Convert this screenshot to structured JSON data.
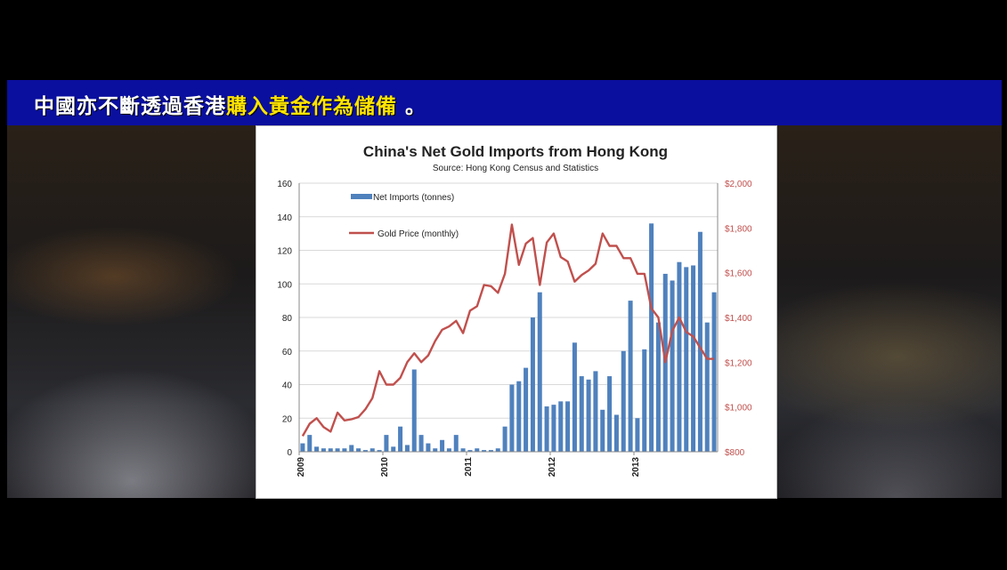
{
  "banner": {
    "segments": [
      {
        "text": "中國",
        "color": "w"
      },
      {
        "text": "亦不斷透過香港",
        "color": "w"
      },
      {
        "text": "購入黃金作為儲備",
        "color": "y"
      },
      {
        "text": " 。",
        "color": "w"
      }
    ]
  },
  "colors": {
    "bar": "#4f81bd",
    "line": "#c0504d",
    "banner": "#0a0f9e",
    "banner_yellow": "#ffe400"
  },
  "chart_data": {
    "type": "bar",
    "title": "China's Net Gold Imports from Hong Kong",
    "subtitle": "Source: Hong Kong Census and Statistics",
    "x_tick_labels": [
      "2009",
      "2010",
      "2011",
      "2012",
      "2013"
    ],
    "y_left": {
      "min": 0,
      "max": 160,
      "step": 20,
      "ticks": [
        "0",
        "20",
        "40",
        "60",
        "80",
        "100",
        "120",
        "140",
        "160"
      ]
    },
    "y_right": {
      "min": 800,
      "max": 2000,
      "step": 200,
      "ticks": [
        "$800",
        "$1,000",
        "$1,200",
        "$1,400",
        "$1,600",
        "$1,800",
        "$2,000"
      ]
    },
    "legend_placement": "top-left",
    "series": [
      {
        "name": "Net Imports (tonnes)",
        "type": "bar",
        "axis": "left",
        "values": [
          5,
          10,
          3,
          2,
          2,
          2,
          2,
          4,
          2,
          1,
          2,
          1,
          10,
          3,
          15,
          4,
          49,
          10,
          5,
          2,
          7,
          2,
          10,
          2,
          1,
          2,
          1,
          1,
          2,
          15,
          40,
          42,
          50,
          80,
          95,
          27,
          28,
          30,
          30,
          65,
          45,
          43,
          48,
          25,
          45,
          22,
          60,
          90,
          20,
          61,
          136,
          77,
          106,
          102,
          113,
          110,
          111,
          131,
          77,
          95
        ]
      },
      {
        "name": "Gold Price (monthly)",
        "type": "line",
        "axis": "right",
        "values": [
          870,
          925,
          950,
          910,
          890,
          975,
          940,
          945,
          955,
          990,
          1040,
          1160,
          1100,
          1100,
          1130,
          1200,
          1240,
          1200,
          1230,
          1295,
          1345,
          1360,
          1385,
          1330,
          1430,
          1450,
          1545,
          1540,
          1510,
          1595,
          1815,
          1635,
          1730,
          1755,
          1545,
          1735,
          1775,
          1670,
          1650,
          1560,
          1590,
          1610,
          1640,
          1775,
          1720,
          1720,
          1665,
          1665,
          1595,
          1595,
          1440,
          1400,
          1200,
          1340,
          1400,
          1335,
          1315,
          1265,
          1215,
          1215
        ]
      }
    ]
  }
}
